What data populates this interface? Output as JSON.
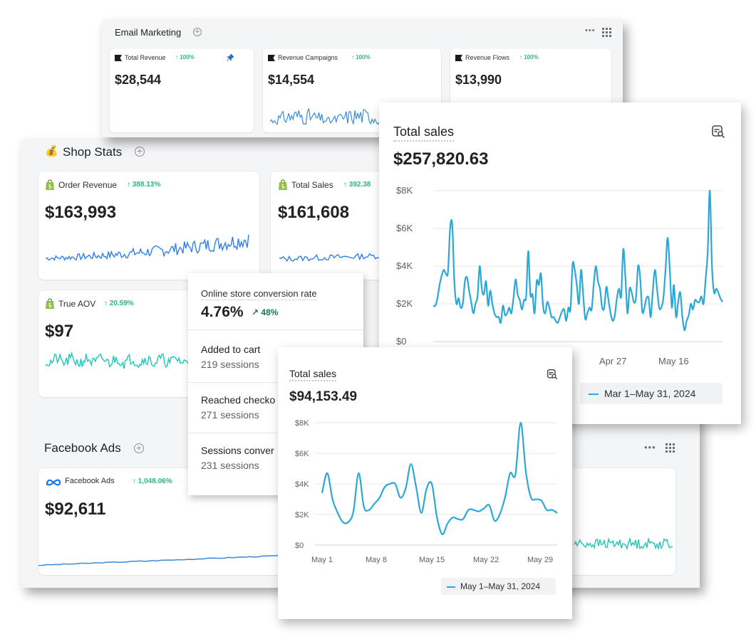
{
  "email_marketing": {
    "title": "Email Marketing",
    "cards": [
      {
        "label": "Total Revenue",
        "trend": "100%",
        "value": "$28,544",
        "pinned": true
      },
      {
        "label": "Revenue Campaigns",
        "trend": "100%",
        "value": "$14,554"
      },
      {
        "label": "Revenue Flows",
        "trend": "100%",
        "value": "$13,990"
      }
    ]
  },
  "shop_stats": {
    "emoji": "💰",
    "title": "Shop Stats",
    "cards": [
      {
        "label": "Order Revenue",
        "trend": "388.13%",
        "value": "$163,993"
      },
      {
        "label": "Total Sales",
        "trend": "392.38",
        "value": "$161,608"
      },
      {
        "label": "True AOV",
        "trend": "20.59%",
        "value": "$97"
      }
    ]
  },
  "facebook_ads": {
    "title": "Facebook Ads",
    "card": {
      "label": "Facebook Ads",
      "trend": "1,048.06%",
      "value": "$92,611"
    }
  },
  "conversion": {
    "title": "Online store conversion rate",
    "rate": "4.76%",
    "change": "48%",
    "steps": [
      {
        "label": "Added to cart",
        "sessions": "219 sessions"
      },
      {
        "label": "Reached checko",
        "sessions": "271 sessions"
      },
      {
        "label": "Sessions conver",
        "sessions": "231 sessions"
      }
    ]
  },
  "sales_large": {
    "title": "Total sales",
    "total": "$257,820.63",
    "legend": "Mar 1–May 31, 2024",
    "icon": "report-search-icon"
  },
  "sales_small": {
    "title": "Total sales",
    "total": "$94,153.49",
    "legend": "May 1–May 31, 2024",
    "icon": "report-search-icon"
  },
  "colors": {
    "line": "#2ba8d6",
    "trend_up": "#2eb67d",
    "spark_blue": "#2f80ed",
    "spark_teal": "#1fc7b6"
  },
  "chart_data": [
    {
      "type": "line",
      "title": "Total sales",
      "series": [
        {
          "name": "Mar 1–May 31, 2024"
        }
      ],
      "x_ticks": [
        "Apr 27",
        "May 16"
      ],
      "y_ticks": [
        "$0",
        "$2K",
        "$4K",
        "$6K",
        "$8K"
      ],
      "ylim": [
        0,
        8000
      ],
      "grid": true,
      "legend": "bottom-right",
      "y": [
        1900,
        1900,
        2300,
        3000,
        3500,
        3800,
        3600,
        3700,
        6000,
        6200,
        3200,
        2000,
        2300,
        1800,
        2000,
        3200,
        3400,
        2700,
        2100,
        1500,
        2000,
        2400,
        4000,
        2800,
        2500,
        3200,
        1900,
        2700,
        2000,
        1500,
        1300,
        1300,
        1000,
        1900,
        1400,
        1500,
        1800,
        1500,
        2300,
        3300,
        2500,
        2200,
        1700,
        2200,
        2400,
        4800,
        2500,
        2500,
        1500,
        3200,
        3000,
        3600,
        1900,
        1500,
        2100,
        1800,
        1300,
        1300,
        1100,
        1000,
        1300,
        1600,
        1700,
        1100,
        1800,
        1700,
        4100,
        3800,
        3000,
        2000,
        3800,
        2500,
        1200,
        1500,
        1800,
        1700,
        3000,
        4000,
        3200,
        2800,
        1800,
        1800,
        2900,
        2200,
        1500,
        1100,
        1400,
        2300,
        2800,
        2400,
        4900,
        3400,
        1500,
        2800,
        2600,
        2100,
        2300,
        4000,
        3400,
        1600,
        1800,
        2300,
        2300,
        1300,
        2700,
        3800,
        2800,
        1800,
        1800,
        2300,
        3800,
        5500,
        3900,
        1800,
        3000,
        1300,
        2100,
        2600,
        1300,
        600,
        1100,
        1400,
        2000,
        1700,
        2200,
        2100,
        2100,
        2400,
        2000,
        3300,
        4800,
        8000,
        4000,
        2600,
        2800,
        2600,
        2300,
        2100
      ]
    },
    {
      "type": "line",
      "title": "Total sales",
      "series": [
        {
          "name": "May 1–May 31, 2024"
        }
      ],
      "x_ticks": [
        "May 1",
        "May 8",
        "May 15",
        "May 22",
        "May 29"
      ],
      "y_ticks": [
        "$0",
        "$2K",
        "$4K",
        "$6K",
        "$8K"
      ],
      "ylim": [
        0,
        8000
      ],
      "grid": true,
      "legend": "bottom-right",
      "y": [
        3400,
        4700,
        3000,
        2100,
        1500,
        1500,
        2200,
        4700,
        2500,
        2300,
        2700,
        3100,
        3800,
        4000,
        4000,
        3100,
        3700,
        5300,
        3800,
        2100,
        3700,
        4000,
        1800,
        700,
        1400,
        1800,
        1700,
        1700,
        2300,
        2300,
        2200,
        2400,
        2600,
        1600,
        2000,
        3100,
        4700,
        4600,
        8000,
        4800,
        3100,
        3000,
        2900,
        2300,
        2300,
        2100
      ]
    }
  ]
}
